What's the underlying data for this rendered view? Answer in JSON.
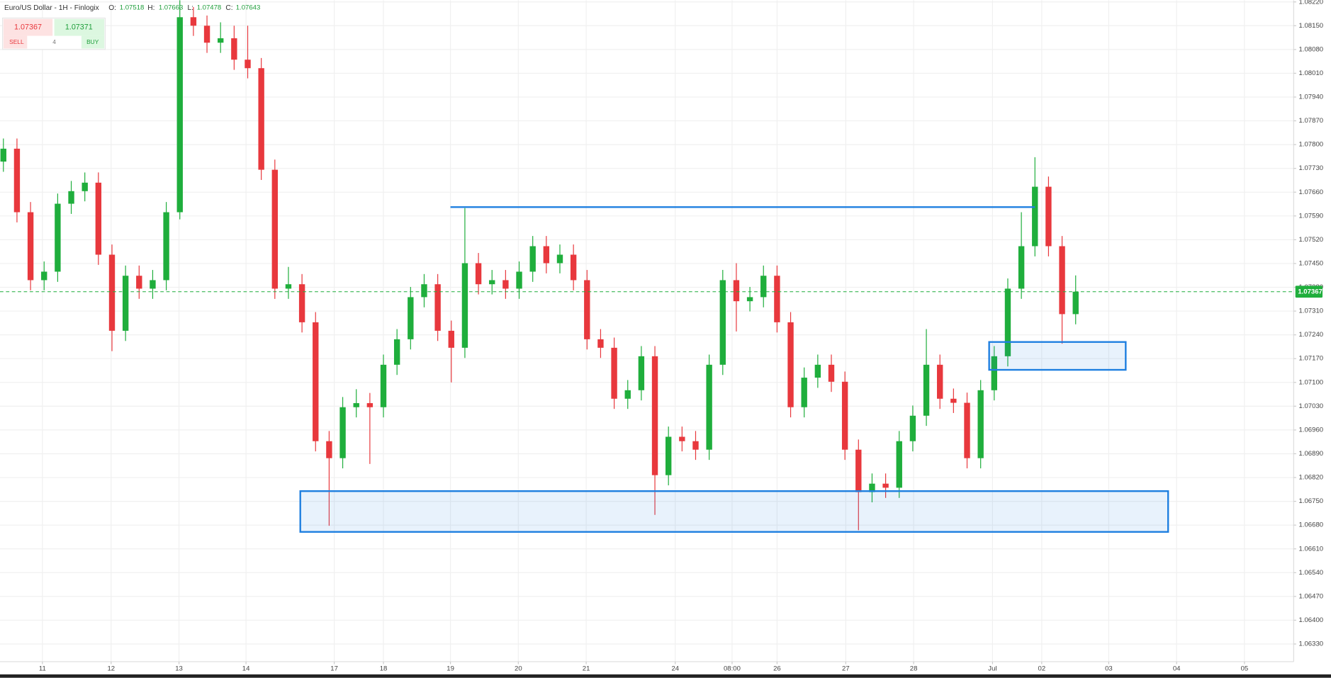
{
  "header": {
    "title": "Euro/US Dollar - 1H - Finlogix",
    "o_label": "O:",
    "open": "1.07518",
    "h_label": "H:",
    "high": "1.07663",
    "l_label": "L:",
    "low": "1.07478",
    "c_label": "C:",
    "close": "1.07643"
  },
  "trade_panel": {
    "sell_price": "1.07367",
    "buy_price": "1.07371",
    "sell": "SELL",
    "quantity": "4",
    "buy": "BUY"
  },
  "chart_data": {
    "type": "candlestick",
    "up_color": "#1fae3c",
    "down_color": "#e8383d",
    "grid": true,
    "x": [
      0.05,
      0.25,
      0.45,
      0.65,
      0.85,
      1.05,
      1.25,
      1.45,
      1.65,
      1.85,
      2.05,
      2.25,
      2.45,
      2.65,
      2.85,
      3.05,
      3.25,
      3.45,
      3.65,
      3.85,
      4.05,
      4.25,
      4.45,
      4.65,
      4.85,
      5.05,
      5.25,
      5.45,
      5.65,
      5.85,
      6.05,
      6.25,
      6.45,
      6.65,
      6.85,
      7.05,
      7.25,
      7.45,
      7.65,
      7.85,
      8.05,
      8.25,
      8.45,
      8.65,
      8.85,
      9.05,
      9.25,
      9.45,
      9.65,
      9.85,
      10.05,
      10.25,
      10.45,
      10.65,
      10.85,
      11.05,
      11.25,
      11.45,
      11.65,
      11.85,
      12.05,
      12.25,
      12.45,
      12.65,
      12.85,
      13.05,
      13.25,
      13.45,
      13.65,
      13.85,
      14.05,
      14.25,
      14.45,
      14.65,
      14.85,
      15.05,
      15.25,
      15.45,
      15.65,
      15.85
    ],
    "open": [
      1.0775,
      1.07788,
      1.07601,
      1.07401,
      1.07426,
      1.07626,
      1.07663,
      1.07688,
      1.07476,
      1.07252,
      1.07414,
      1.07376,
      1.07401,
      1.07601,
      1.08175,
      1.0815,
      1.081,
      1.08113,
      1.0805,
      1.08025,
      1.07726,
      1.07376,
      1.07389,
      1.07277,
      1.06927,
      1.06877,
      1.07027,
      1.07039,
      1.07027,
      1.07152,
      1.07227,
      1.07351,
      1.07389,
      1.07252,
      1.07202,
      1.07451,
      1.07389,
      1.07401,
      1.07376,
      1.07426,
      1.07501,
      1.07451,
      1.07476,
      1.07401,
      1.07227,
      1.07202,
      1.07052,
      1.07077,
      1.07177,
      1.06827,
      1.0694,
      1.06927,
      1.06902,
      1.07152,
      1.07401,
      1.07339,
      1.07351,
      1.07414,
      1.07277,
      1.07027,
      1.07114,
      1.07152,
      1.07102,
      1.06902,
      1.06777,
      1.06802,
      1.0679,
      1.06927,
      1.07002,
      1.07152,
      1.07052,
      1.0704,
      1.06877,
      1.07077,
      1.07177,
      1.07376,
      1.07501,
      1.07676,
      1.07501,
      1.07301
    ],
    "high": [
      1.07818,
      1.07818,
      1.07631,
      1.07456,
      1.07656,
      1.07693,
      1.07718,
      1.07718,
      1.07506,
      1.07444,
      1.07444,
      1.07431,
      1.07631,
      1.08225,
      1.08205,
      1.0818,
      1.0816,
      1.0815,
      1.0815,
      1.08055,
      1.07756,
      1.0744,
      1.07419,
      1.07307,
      1.06957,
      1.07057,
      1.0708,
      1.07069,
      1.07182,
      1.07257,
      1.07381,
      1.07419,
      1.07419,
      1.07282,
      1.07613,
      1.07481,
      1.07431,
      1.07431,
      1.07456,
      1.07531,
      1.07531,
      1.07506,
      1.07506,
      1.07431,
      1.07257,
      1.07232,
      1.07107,
      1.07207,
      1.07207,
      1.0697,
      1.0697,
      1.06957,
      1.07182,
      1.07431,
      1.07451,
      1.07381,
      1.07444,
      1.07444,
      1.07307,
      1.07144,
      1.07182,
      1.07182,
      1.07132,
      1.06932,
      1.06832,
      1.06832,
      1.06957,
      1.07032,
      1.07257,
      1.07182,
      1.07082,
      1.0707,
      1.07107,
      1.07207,
      1.07406,
      1.07601,
      1.07763,
      1.07706,
      1.07531,
      1.07415
    ],
    "low": [
      1.0772,
      1.07571,
      1.07371,
      1.07371,
      1.07396,
      1.07596,
      1.07633,
      1.07446,
      1.07192,
      1.07222,
      1.07346,
      1.07346,
      1.07371,
      1.0758,
      1.0812,
      1.0807,
      1.0807,
      1.0802,
      1.07995,
      1.07696,
      1.07346,
      1.07346,
      1.07247,
      1.06897,
      1.06678,
      1.06847,
      1.06997,
      1.0686,
      1.06997,
      1.07122,
      1.07197,
      1.07321,
      1.07222,
      1.071,
      1.07172,
      1.07359,
      1.07359,
      1.07346,
      1.07346,
      1.07396,
      1.07421,
      1.07421,
      1.07371,
      1.07197,
      1.07172,
      1.07022,
      1.07022,
      1.07047,
      1.0671,
      1.06797,
      1.06897,
      1.06872,
      1.06872,
      1.07122,
      1.0725,
      1.07309,
      1.07321,
      1.07247,
      1.06997,
      1.06997,
      1.07084,
      1.07072,
      1.06872,
      1.06665,
      1.06747,
      1.0676,
      1.0676,
      1.06897,
      1.06972,
      1.07022,
      1.0701,
      1.06847,
      1.06847,
      1.07047,
      1.07147,
      1.07346,
      1.07471,
      1.07471,
      1.07214,
      1.07271
    ],
    "close": [
      1.07788,
      1.07601,
      1.07401,
      1.07426,
      1.07626,
      1.07663,
      1.07688,
      1.07476,
      1.07252,
      1.07414,
      1.07376,
      1.07401,
      1.07601,
      1.08175,
      1.0815,
      1.081,
      1.08113,
      1.0805,
      1.08025,
      1.07726,
      1.07376,
      1.07389,
      1.07277,
      1.06927,
      1.06877,
      1.07027,
      1.07039,
      1.07027,
      1.07152,
      1.07227,
      1.07351,
      1.07389,
      1.07252,
      1.07202,
      1.07451,
      1.07389,
      1.07401,
      1.07376,
      1.07426,
      1.07501,
      1.07451,
      1.07476,
      1.07401,
      1.07227,
      1.07202,
      1.07052,
      1.07077,
      1.07177,
      1.06827,
      1.0694,
      1.06927,
      1.06902,
      1.07152,
      1.07401,
      1.07339,
      1.07351,
      1.07414,
      1.07277,
      1.07027,
      1.07114,
      1.07152,
      1.07102,
      1.06902,
      1.06777,
      1.06802,
      1.0679,
      1.06927,
      1.07002,
      1.07152,
      1.07052,
      1.0704,
      1.06877,
      1.07077,
      1.07177,
      1.07376,
      1.07501,
      1.07676,
      1.07501,
      1.07301,
      1.07367
    ],
    "last_price": 1.07367,
    "last_price_color": "#1fae3c",
    "xlim": [
      0,
      19.0625
    ],
    "xticks": [
      {
        "value": 0.625,
        "label": "11"
      },
      {
        "value": 1.6375,
        "label": "12"
      },
      {
        "value": 2.6375,
        "label": "13"
      },
      {
        "value": 3.625,
        "label": "14"
      },
      {
        "value": 4.925,
        "label": "17"
      },
      {
        "value": 5.65,
        "label": "18"
      },
      {
        "value": 6.6375,
        "label": "19"
      },
      {
        "value": 7.6375,
        "label": "20"
      },
      {
        "value": 8.6375,
        "label": "21"
      },
      {
        "value": 9.95,
        "label": "24"
      },
      {
        "value": 10.7875,
        "label": "08:00"
      },
      {
        "value": 11.45,
        "label": "26"
      },
      {
        "value": 12.4625,
        "label": "27"
      },
      {
        "value": 13.4625,
        "label": "28"
      },
      {
        "value": 14.625,
        "label": "Jul"
      },
      {
        "value": 15.35,
        "label": "02"
      },
      {
        "value": 16.3375,
        "label": "03"
      },
      {
        "value": 17.3375,
        "label": "04"
      },
      {
        "value": 18.3375,
        "label": "05"
      }
    ],
    "ylim": [
      1.06278,
      1.08225
    ],
    "yticks": [
      {
        "value": 1.0822,
        "label": "1.08220"
      },
      {
        "value": 1.0815,
        "label": "1.08150"
      },
      {
        "value": 1.0808,
        "label": "1.08080"
      },
      {
        "value": 1.0801,
        "label": "1.08010"
      },
      {
        "value": 1.0794,
        "label": "1.07940"
      },
      {
        "value": 1.0787,
        "label": "1.07870"
      },
      {
        "value": 1.078,
        "label": "1.07800"
      },
      {
        "value": 1.0773,
        "label": "1.07730"
      },
      {
        "value": 1.0766,
        "label": "1.07660"
      },
      {
        "value": 1.0759,
        "label": "1.07590"
      },
      {
        "value": 1.0752,
        "label": "1.07520"
      },
      {
        "value": 1.0745,
        "label": "1.07450"
      },
      {
        "value": 1.0738,
        "label": "1.07380"
      },
      {
        "value": 1.0731,
        "label": "1.07310"
      },
      {
        "value": 1.0724,
        "label": "1.07240"
      },
      {
        "value": 1.0717,
        "label": "1.07170"
      },
      {
        "value": 1.071,
        "label": "1.07100"
      },
      {
        "value": 1.0703,
        "label": "1.07030"
      },
      {
        "value": 1.0696,
        "label": "1.06960"
      },
      {
        "value": 1.0689,
        "label": "1.06890"
      },
      {
        "value": 1.0682,
        "label": "1.06820"
      },
      {
        "value": 1.0675,
        "label": "1.06750"
      },
      {
        "value": 1.0668,
        "label": "1.06680"
      },
      {
        "value": 1.0661,
        "label": "1.06610"
      },
      {
        "value": 1.0654,
        "label": "1.06540"
      },
      {
        "value": 1.0647,
        "label": "1.06470"
      },
      {
        "value": 1.064,
        "label": "1.06400"
      },
      {
        "value": 1.0633,
        "label": "1.06330"
      }
    ],
    "shapes": [
      {
        "kind": "line",
        "x0": 6.6375,
        "x1": 15.25,
        "y0": 1.07616,
        "y1": 1.07616,
        "color": "#1e7fe0"
      },
      {
        "kind": "rect",
        "x0": 4.425,
        "x1": 17.2125,
        "y0": 1.0678,
        "y1": 1.0666,
        "color": "#1e7fe0"
      },
      {
        "kind": "rect",
        "x0": 14.575,
        "x1": 16.5875,
        "y0": 1.07219,
        "y1": 1.07137,
        "color": "#1e7fe0"
      }
    ]
  }
}
